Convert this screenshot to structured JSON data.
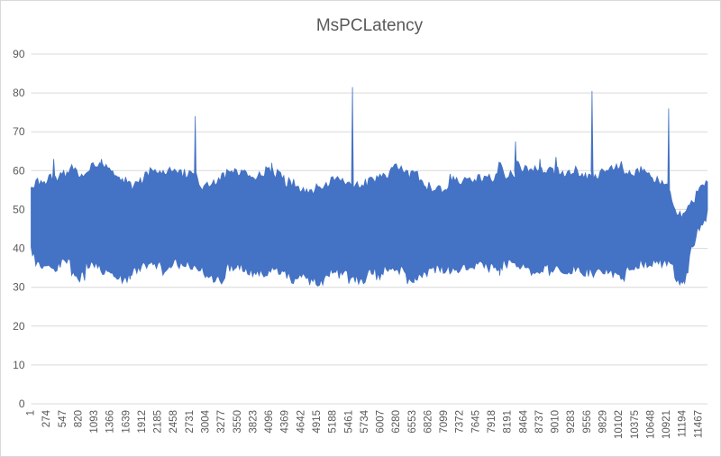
{
  "chart_data": {
    "type": "line",
    "title": "MsPCLatency",
    "xlabel": "",
    "ylabel": "",
    "xlim": [
      1,
      11617
    ],
    "ylim": [
      0,
      90
    ],
    "y_ticks": [
      0,
      10,
      20,
      30,
      40,
      50,
      60,
      70,
      80,
      90
    ],
    "x_tick_labels": [
      "1",
      "274",
      "547",
      "820",
      "1093",
      "1366",
      "1639",
      "1912",
      "2185",
      "2458",
      "2731",
      "3004",
      "3277",
      "3550",
      "3823",
      "4096",
      "4369",
      "4642",
      "4915",
      "5188",
      "5461",
      "5734",
      "6007",
      "6280",
      "6553",
      "6826",
      "7099",
      "7372",
      "7645",
      "7918",
      "8191",
      "8464",
      "8737",
      "9010",
      "9283",
      "9556",
      "9829",
      "10102",
      "10375",
      "10648",
      "10921",
      "11194",
      "11467"
    ],
    "grid": "horizontal-only",
    "legend": "none",
    "colors": {
      "series": "#4472C4",
      "gridline": "#D9D9D9",
      "axis_text": "#595959",
      "title_text": "#595959",
      "background": "#FFFFFF",
      "chart_border": "#D9D9D9"
    },
    "series": [
      {
        "name": "MsPCLatency",
        "representation": "dense noisy line (~11600 samples) stored as min/max band envelope plus extreme peaks and troughs, values in ms",
        "envelope": [
          [
            1,
            56,
            38
          ],
          [
            260,
            58,
            36
          ],
          [
            420,
            59,
            35
          ],
          [
            650,
            61,
            35
          ],
          [
            840,
            59,
            34
          ],
          [
            1150,
            62,
            35
          ],
          [
            1370,
            61,
            34
          ],
          [
            1580,
            57,
            33
          ],
          [
            1810,
            57,
            34
          ],
          [
            2040,
            61,
            36
          ],
          [
            2280,
            60,
            35
          ],
          [
            2510,
            58,
            36
          ],
          [
            2740,
            58,
            36
          ],
          [
            2975,
            57,
            34
          ],
          [
            3205,
            59,
            33
          ],
          [
            3440,
            61,
            34
          ],
          [
            3670,
            60,
            34
          ],
          [
            3900,
            59,
            34
          ],
          [
            4135,
            59,
            35
          ],
          [
            4370,
            57,
            34
          ],
          [
            4600,
            55,
            33
          ],
          [
            4830,
            54,
            32
          ],
          [
            4956,
            55,
            31.5
          ],
          [
            5140,
            56,
            34
          ],
          [
            5375,
            57,
            34
          ],
          [
            5530,
            56,
            33
          ],
          [
            5690,
            57,
            33
          ],
          [
            5920,
            57,
            33
          ],
          [
            6210,
            60,
            34
          ],
          [
            6380,
            59,
            33
          ],
          [
            6540,
            60,
            33
          ],
          [
            6770,
            57,
            34
          ],
          [
            7000,
            56,
            35
          ],
          [
            7310,
            58,
            35
          ],
          [
            7545,
            59,
            35
          ],
          [
            7775,
            59,
            36
          ],
          [
            8005,
            60,
            36
          ],
          [
            8195,
            60,
            35
          ],
          [
            8320,
            60,
            34
          ],
          [
            8470,
            59,
            34
          ],
          [
            8735,
            60,
            34
          ],
          [
            9015,
            61,
            35
          ],
          [
            9170,
            60,
            34
          ],
          [
            9355,
            62,
            35
          ],
          [
            9480,
            60,
            34
          ],
          [
            9635,
            60,
            34
          ],
          [
            9740,
            59,
            33
          ],
          [
            9945,
            61,
            34
          ],
          [
            10175,
            60,
            34
          ],
          [
            10410,
            59,
            35
          ],
          [
            10640,
            59,
            36
          ],
          [
            10875,
            56,
            36
          ],
          [
            10950,
            55,
            37
          ],
          [
            11075,
            50,
            33
          ],
          [
            11185,
            48,
            31.5
          ],
          [
            11290,
            50,
            36
          ],
          [
            11415,
            53,
            42
          ],
          [
            11525,
            55,
            46
          ],
          [
            11617,
            57,
            49
          ]
        ],
        "peaks": [
          [
            390,
            63
          ],
          [
            1210,
            63
          ],
          [
            2820,
            74
          ],
          [
            4135,
            62
          ],
          [
            5520,
            81.5
          ],
          [
            8320,
            67.5
          ],
          [
            8740,
            63
          ],
          [
            9015,
            63.5
          ],
          [
            9635,
            80.5
          ],
          [
            10950,
            76
          ]
        ],
        "troughs": [
          [
            1700,
            32
          ],
          [
            4956,
            30.5
          ],
          [
            5570,
            31.5
          ],
          [
            6600,
            32
          ],
          [
            8050,
            33
          ],
          [
            11185,
            31
          ]
        ]
      }
    ]
  }
}
